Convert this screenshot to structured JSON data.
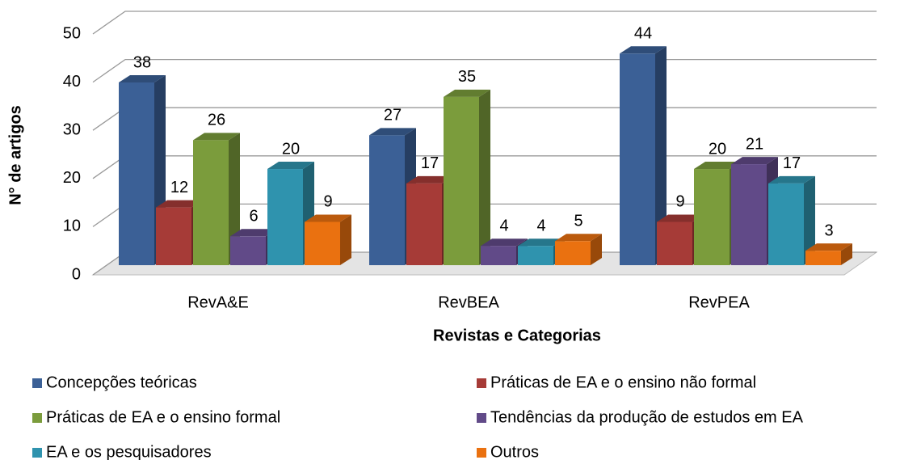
{
  "chart_data": {
    "type": "bar3d",
    "xlabel": "Revistas e Categorias",
    "ylabel": "N° de artigos",
    "categories": [
      "RevA&E",
      "RevBEA",
      "RevPEA"
    ],
    "series": [
      {
        "name": "Concepções teóricas",
        "color": "#3b6096",
        "values": [
          38,
          27,
          44
        ]
      },
      {
        "name": "Práticas de EA e o ensino não formal",
        "color": "#a63b37",
        "values": [
          12,
          17,
          9
        ]
      },
      {
        "name": "Práticas de EA e o ensino formal",
        "color": "#7b9c3c",
        "values": [
          26,
          35,
          20
        ]
      },
      {
        "name": "Tendências da produção de estudos em EA",
        "color": "#614a88",
        "values": [
          6,
          4,
          21
        ]
      },
      {
        "name": "EA e os pesquisadores",
        "color": "#2f93ae",
        "values": [
          20,
          4,
          17
        ]
      },
      {
        "name": "Outros",
        "color": "#ea7110",
        "values": [
          9,
          5,
          3
        ]
      }
    ],
    "ylim": [
      0,
      50
    ],
    "yticks": [
      0,
      10,
      20,
      30,
      40,
      50
    ],
    "grid": true
  }
}
